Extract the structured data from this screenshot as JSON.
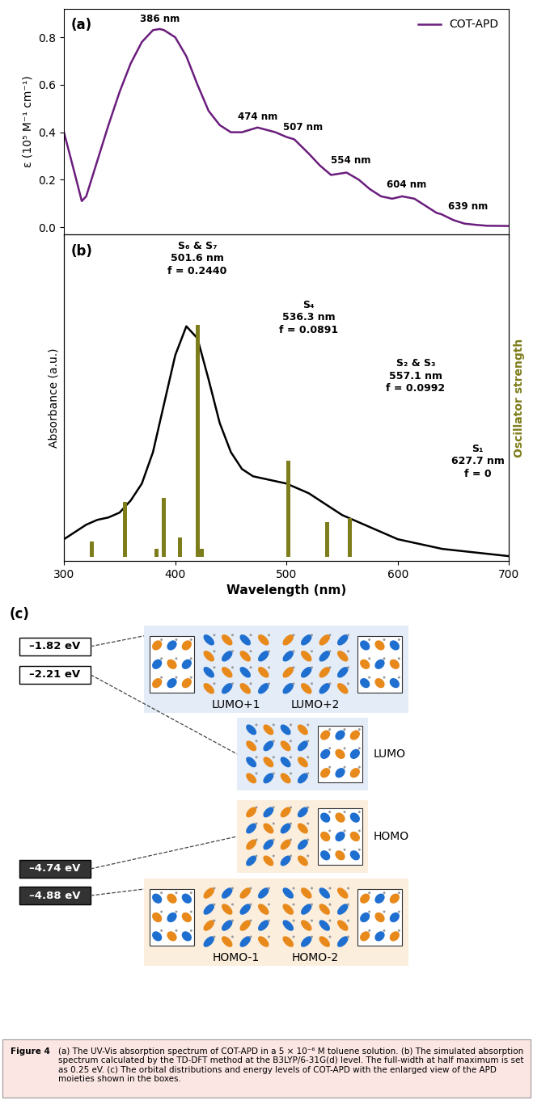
{
  "chart_data": [
    {
      "type": "line",
      "panel_label": "(a)",
      "y_label": "ε (10⁵ M⁻¹ cm⁻¹)",
      "x": [
        300,
        310,
        316,
        320,
        330,
        340,
        350,
        360,
        370,
        380,
        386,
        390,
        400,
        410,
        420,
        430,
        440,
        450,
        460,
        474,
        490,
        500,
        507,
        520,
        530,
        540,
        554,
        565,
        575,
        585,
        595,
        604,
        615,
        625,
        635,
        639,
        650,
        660,
        670,
        680,
        700
      ],
      "series": [
        {
          "name": "COT-APD",
          "color": "#6b1d7d",
          "values": [
            0.4,
            0.22,
            0.11,
            0.13,
            0.28,
            0.43,
            0.57,
            0.69,
            0.78,
            0.83,
            0.835,
            0.83,
            0.8,
            0.72,
            0.6,
            0.49,
            0.43,
            0.4,
            0.4,
            0.42,
            0.4,
            0.38,
            0.37,
            0.31,
            0.26,
            0.22,
            0.23,
            0.2,
            0.16,
            0.13,
            0.12,
            0.13,
            0.12,
            0.09,
            0.06,
            0.055,
            0.03,
            0.015,
            0.01,
            0.006,
            0.005
          ]
        }
      ],
      "legend": "upper right",
      "xlim": [
        300,
        700
      ],
      "xticks": [
        300,
        400,
        500,
        600,
        700
      ],
      "ylim": [
        -0.03,
        0.92
      ],
      "yticks": [
        {
          "value": 0,
          "label": "0.0"
        },
        {
          "value": 0.2,
          "label": "0.2"
        },
        {
          "value": 0.4,
          "label": "0.4"
        },
        {
          "value": 0.6,
          "label": "0.6"
        },
        {
          "value": 0.8,
          "label": "0.8"
        }
      ],
      "tick_labels": "y",
      "annotations": [
        {
          "text": "386 nm",
          "x": 386,
          "y": 0.835
        },
        {
          "text": "474 nm",
          "x": 474,
          "y": 0.42
        },
        {
          "text": "507 nm",
          "x": 507,
          "y": 0.37
        },
        {
          "text": "554 nm",
          "x": 554,
          "y": 0.23
        },
        {
          "text": "604 nm",
          "x": 604,
          "y": 0.13
        },
        {
          "text": "639 nm",
          "x": 639,
          "y": 0.055
        }
      ]
    },
    {
      "type": "line",
      "panel_label": "(b)",
      "x_label": "Wavelength (nm)",
      "y_label": "Absorbance (a.u.)",
      "y2_label": "Oscillator strength",
      "x": [
        300,
        310,
        320,
        330,
        340,
        350,
        360,
        370,
        380,
        390,
        400,
        410,
        420,
        430,
        440,
        450,
        460,
        470,
        480,
        490,
        500,
        510,
        520,
        530,
        540,
        550,
        560,
        570,
        580,
        590,
        600,
        620,
        640,
        660,
        680,
        700
      ],
      "series": [
        {
          "type": "line",
          "color": "#000000",
          "values": [
            0.09,
            0.12,
            0.15,
            0.17,
            0.18,
            0.2,
            0.25,
            0.32,
            0.45,
            0.65,
            0.85,
            0.97,
            0.92,
            0.75,
            0.57,
            0.45,
            0.38,
            0.35,
            0.34,
            0.33,
            0.32,
            0.3,
            0.28,
            0.25,
            0.22,
            0.19,
            0.17,
            0.15,
            0.13,
            0.11,
            0.09,
            0.07,
            0.05,
            0.04,
            0.03,
            0.02
          ]
        },
        {
          "type": "bar",
          "axis": "y2",
          "color": "#7d7d1b",
          "x": [
            325,
            355,
            383,
            390,
            404,
            420,
            424,
            501.6,
            536.3,
            557.1,
            627.7
          ],
          "values": [
            0.04,
            0.14,
            0.02,
            0.15,
            0.05,
            0.59,
            0.02,
            0.244,
            0.0891,
            0.0992,
            0
          ]
        }
      ],
      "xlim": [
        300,
        700
      ],
      "xticks": [
        300,
        400,
        500,
        600,
        700
      ],
      "ylim": [
        0,
        1.35
      ],
      "yticks": [],
      "y2lim": [
        -0.01,
        0.82
      ],
      "y2ticks": [],
      "tick_labels": "x",
      "annotations": [
        {
          "text": "S₆ & S₇\n501.6 nm\nf = 0.2440"
        },
        {
          "text": "S₄\n536.3 nm\nf = 0.0891"
        },
        {
          "text": "S₂ & S₃\n557.1 nm\nf = 0.0992"
        },
        {
          "text": "S₁\n627.7 nm\nf = 0"
        }
      ]
    }
  ],
  "diagram": {
    "panel_label": "(c)",
    "levels": [
      {
        "energy": "–1.82 eV",
        "orbitals": [
          "LUMO+1",
          "LUMO+2"
        ]
      },
      {
        "energy": "–2.21 eV",
        "orbitals": [
          "LUMO"
        ]
      },
      {
        "energy": "–4.74 eV",
        "orbitals": [
          "HOMO"
        ]
      },
      {
        "energy": "–4.88 eV",
        "orbitals": [
          "HOMO-1",
          "HOMO-2"
        ]
      }
    ]
  },
  "caption": {
    "label": "Figure 4",
    "text": "(a) The UV-Vis absorption spectrum of COT-APD in a 5 × 10⁻⁶ M toluene solution. (b) The simulated absorption spectrum calculated by the TD-DFT method at the B3LYP/6-31G(d) level. The full-width at half maximum is set as 0.25 eV. (c) The orbital distributions and energy levels of COT-APD with the enlarged view of the APD moieties shown in the boxes."
  }
}
